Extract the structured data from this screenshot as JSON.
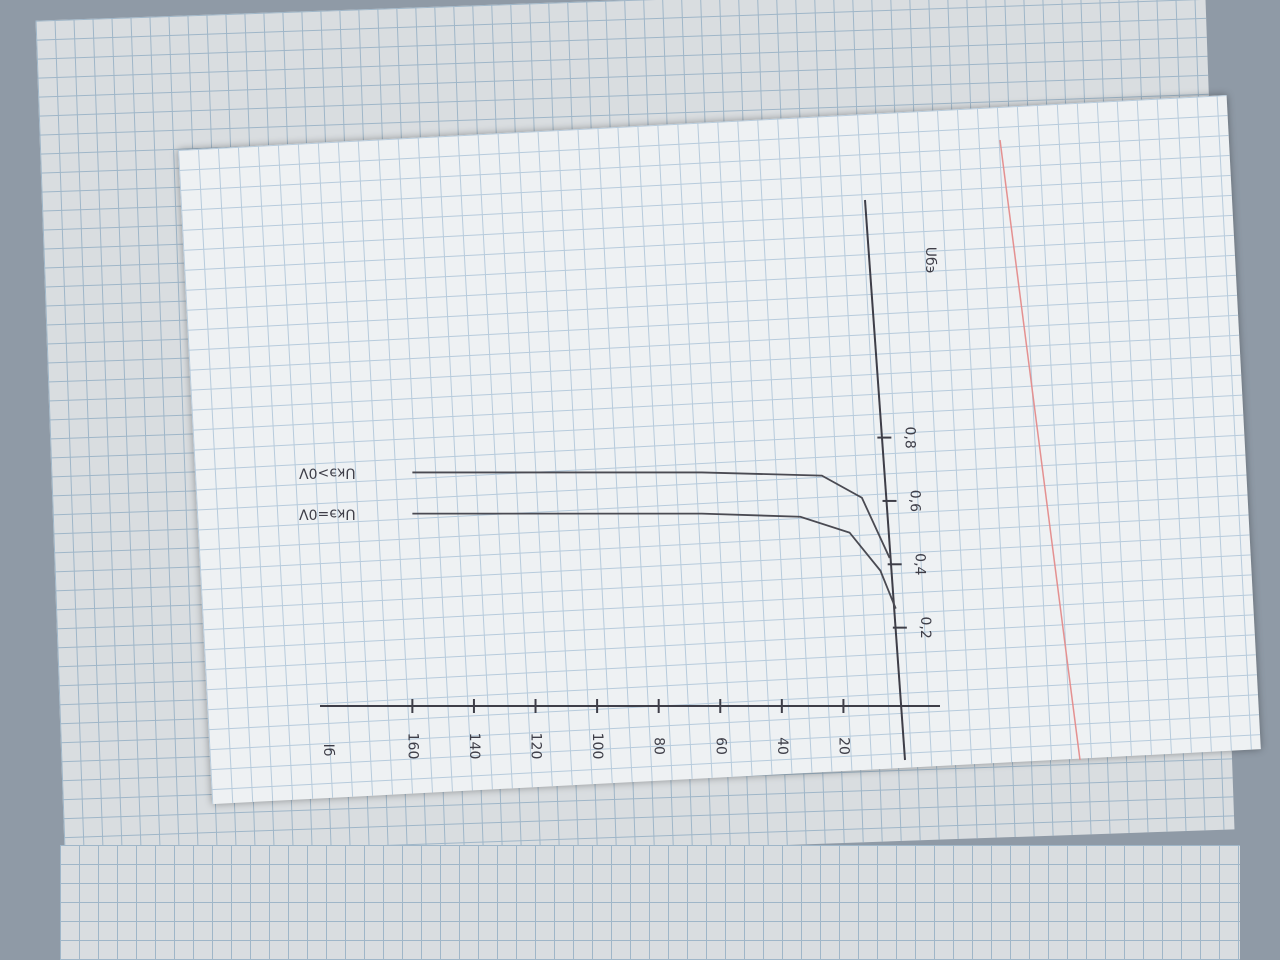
{
  "chart_data": {
    "type": "line",
    "x_label": "Uбэ",
    "y_label": "Iб",
    "xlim": [
      0,
      1.55
    ],
    "ylim": [
      0,
      190
    ],
    "xticks": [
      {
        "value": 0.2,
        "label": "0,2"
      },
      {
        "value": 0.4,
        "label": "0,4"
      },
      {
        "value": 0.6,
        "label": "0,6"
      },
      {
        "value": 0.8,
        "label": "0,8"
      }
    ],
    "yticks": [
      20,
      40,
      60,
      80,
      100,
      120,
      140,
      160
    ],
    "series": [
      {
        "name": "Uкэ=0V",
        "color": "#4a4a52",
        "x": [
          0.26,
          0.38,
          0.5,
          0.55,
          0.56,
          0.56
        ],
        "values": [
          3,
          8,
          18,
          34,
          66,
          160
        ]
      },
      {
        "name": "Uкэ>0V",
        "color": "#4a4a52",
        "x": [
          0.42,
          0.61,
          0.68,
          0.69,
          0.69
        ],
        "values": [
          5,
          14,
          27,
          66,
          160
        ]
      }
    ]
  }
}
